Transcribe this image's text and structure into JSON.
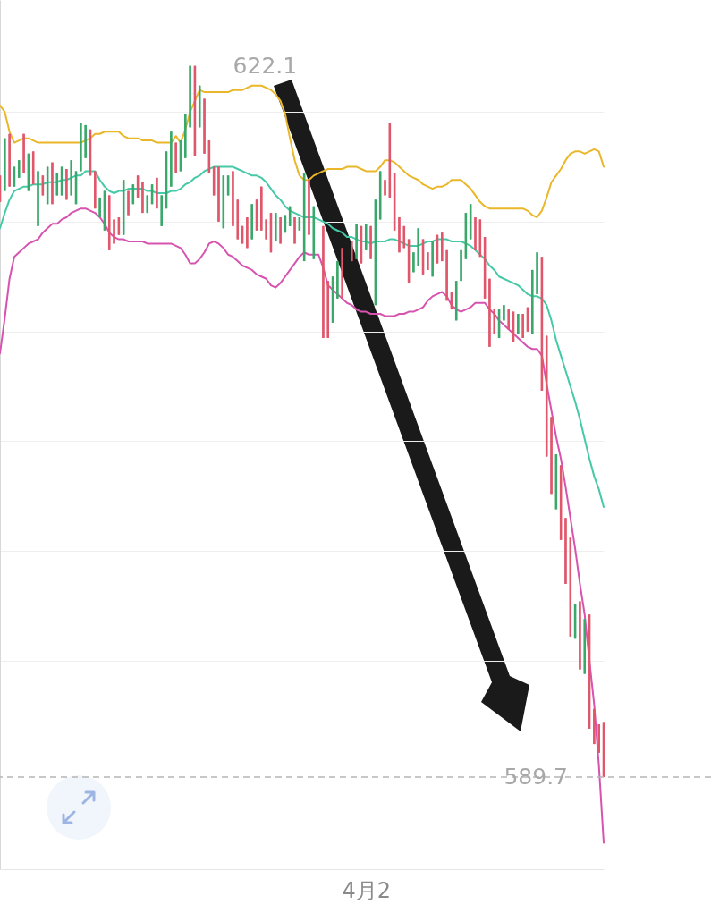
{
  "chart_data": {
    "type": "candlestick",
    "categories": [
      null,
      null,
      null,
      null,
      null,
      null,
      null,
      null,
      null,
      null,
      null,
      null,
      null,
      null,
      null,
      null,
      null,
      null,
      null,
      null,
      null,
      null,
      null,
      null,
      null,
      null,
      null,
      null,
      null,
      null,
      null,
      null,
      null,
      null,
      null,
      null,
      null,
      null,
      null,
      null,
      null,
      null,
      null,
      null,
      null,
      null,
      null,
      null,
      null,
      null,
      null,
      null,
      null,
      null,
      null,
      null,
      null,
      null,
      null,
      null,
      null,
      null,
      null,
      null,
      null,
      null,
      null,
      null,
      null,
      null,
      null,
      null,
      null,
      null,
      null,
      null,
      null,
      "4月2",
      null,
      null,
      null,
      null,
      null,
      null,
      null,
      null,
      null,
      null,
      null,
      null,
      null,
      null,
      null,
      null,
      null,
      null,
      null,
      null,
      null,
      null,
      null,
      null,
      null,
      null,
      null,
      null,
      null,
      null,
      null,
      null,
      null,
      null,
      null,
      null,
      null,
      null,
      null,
      null,
      null,
      null,
      null,
      null,
      null,
      null,
      null,
      null,
      null,
      null
    ],
    "ohlc": [
      [
        617.1,
        617.1,
        615.9,
        615.9
      ],
      [
        616.4,
        618.8,
        616.4,
        618.8
      ],
      [
        619.0,
        619.0,
        616.6,
        616.6
      ],
      [
        616.6,
        617.5,
        616.6,
        617.5
      ],
      [
        617.0,
        617.8,
        617.0,
        617.8
      ],
      [
        619.0,
        619.0,
        617.2,
        617.2
      ],
      [
        616.4,
        618.1,
        616.4,
        618.1
      ],
      [
        618.2,
        618.2,
        616.7,
        616.7
      ],
      [
        614.8,
        617.3,
        614.8,
        617.3
      ],
      [
        617.1,
        617.1,
        616.2,
        616.2
      ],
      [
        615.8,
        617.5,
        615.8,
        617.5
      ],
      [
        617.7,
        617.7,
        615.8,
        615.8
      ],
      [
        616.2,
        617.2,
        616.2,
        617.2
      ],
      [
        616.2,
        617.5,
        616.2,
        617.5
      ],
      [
        617.4,
        617.4,
        616.0,
        616.0
      ],
      [
        616.2,
        617.8,
        616.2,
        617.8
      ],
      [
        615.8,
        617.3,
        615.8,
        617.3
      ],
      [
        617.3,
        619.5,
        617.3,
        619.5
      ],
      [
        617.9,
        619.4,
        617.9,
        619.4
      ],
      [
        619.2,
        619.2,
        617.1,
        617.1
      ],
      [
        617.3,
        617.3,
        615.6,
        615.6
      ],
      [
        615.2,
        616.1,
        615.2,
        616.1
      ],
      [
        614.6,
        616.4,
        614.6,
        616.4
      ],
      [
        616.2,
        616.2,
        613.7,
        613.7
      ],
      [
        615.1,
        615.1,
        614.0,
        614.0
      ],
      [
        615.2,
        615.2,
        614.4,
        614.4
      ],
      [
        614.4,
        616.9,
        614.4,
        616.9
      ],
      [
        616.4,
        616.4,
        615.3,
        615.3
      ],
      [
        615.8,
        616.7,
        615.8,
        616.7
      ],
      [
        617.1,
        617.1,
        616.1,
        616.1
      ],
      [
        616.8,
        616.8,
        615.4,
        615.4
      ],
      [
        615.4,
        616.2,
        615.4,
        616.2
      ],
      [
        615.8,
        616.7,
        615.8,
        616.7
      ],
      [
        617.0,
        617.0,
        615.6,
        615.6
      ],
      [
        614.8,
        616.2,
        614.8,
        616.2
      ],
      [
        615.6,
        618.2,
        615.6,
        618.2
      ],
      [
        616.6,
        619.1,
        616.6,
        619.1
      ],
      [
        618.6,
        618.6,
        617.2,
        617.2
      ],
      [
        617.3,
        618.7,
        617.3,
        618.7
      ],
      [
        617.9,
        619.9,
        617.9,
        619.9
      ],
      [
        619.3,
        622.1,
        619.3,
        622.1
      ],
      [
        622.1,
        622.1,
        618.0,
        618.0
      ],
      [
        619.3,
        621.2,
        619.3,
        621.2
      ],
      [
        620.6,
        620.6,
        618.1,
        618.1
      ],
      [
        618.7,
        618.7,
        617.2,
        617.2
      ],
      [
        617.5,
        617.5,
        616.2,
        616.2
      ],
      [
        617.5,
        617.5,
        615.0,
        615.0
      ],
      [
        614.7,
        617.1,
        614.7,
        617.1
      ],
      [
        616.2,
        617.1,
        616.2,
        617.1
      ],
      [
        617.3,
        617.3,
        614.8,
        614.8
      ],
      [
        616.0,
        616.0,
        614.2,
        614.2
      ],
      [
        614.8,
        614.8,
        614.0,
        614.0
      ],
      [
        615.2,
        615.2,
        613.8,
        613.8
      ],
      [
        614.2,
        615.8,
        614.2,
        615.8
      ],
      [
        616.0,
        616.0,
        614.6,
        614.6
      ],
      [
        616.6,
        616.6,
        614.6,
        614.6
      ],
      [
        615.1,
        615.1,
        614.2,
        614.2
      ],
      [
        615.4,
        615.4,
        613.6,
        613.6
      ],
      [
        614.1,
        615.4,
        614.1,
        615.4
      ],
      [
        615.2,
        615.2,
        614.0,
        614.0
      ],
      [
        614.5,
        615.3,
        614.5,
        615.3
      ],
      [
        614.8,
        615.7,
        614.8,
        615.7
      ],
      [
        615.2,
        615.2,
        614.0,
        614.0
      ],
      [
        614.6,
        615.2,
        614.6,
        615.2
      ],
      [
        613.2,
        617.2,
        613.2,
        617.2
      ],
      [
        616.9,
        616.9,
        614.4,
        614.4
      ],
      [
        613.3,
        615.7,
        613.3,
        615.7
      ],
      null,
      [
        614.8,
        614.8,
        609.7,
        609.7
      ],
      [
        612.3,
        612.3,
        609.7,
        609.7
      ],
      [
        610.4,
        612.5,
        610.4,
        612.5
      ],
      [
        611.5,
        613.2,
        611.5,
        613.2
      ],
      [
        613.8,
        613.8,
        611.5,
        611.5
      ],
      null,
      [
        614.1,
        614.1,
        613.2,
        613.2
      ],
      [
        613.3,
        614.9,
        613.3,
        614.9
      ],
      [
        614.8,
        614.8,
        613.1,
        613.1
      ],
      [
        613.7,
        614.9,
        613.7,
        614.9
      ],
      [
        614.8,
        614.8,
        613.3,
        613.3
      ],
      [
        611.2,
        616.0,
        611.2,
        616.0
      ],
      [
        615.1,
        617.3,
        615.1,
        617.3
      ],
      [
        616.9,
        616.9,
        616.2,
        616.2
      ],
      [
        619.5,
        619.5,
        616.1,
        616.1
      ],
      [
        617.2,
        617.2,
        614.6,
        614.6
      ],
      [
        615.2,
        615.2,
        613.6,
        613.6
      ],
      [
        614.8,
        614.8,
        613.8,
        613.8
      ],
      [
        614.2,
        614.2,
        612.2,
        612.2
      ],
      [
        612.7,
        613.6,
        612.7,
        613.6
      ],
      [
        613.0,
        614.7,
        613.0,
        614.7
      ],
      [
        614.2,
        614.2,
        612.6,
        612.6
      ],
      [
        613.6,
        613.6,
        612.8,
        612.8
      ],
      [
        612.5,
        614.1,
        612.5,
        614.1
      ],
      [
        614.4,
        614.4,
        613.1,
        613.1
      ],
      [
        614.5,
        614.5,
        613.2,
        613.2
      ],
      [
        613.7,
        613.7,
        611.4,
        611.4
      ],
      [
        611.8,
        611.8,
        611.0,
        611.0
      ],
      [
        610.5,
        612.3,
        610.5,
        612.3
      ],
      [
        612.3,
        613.7,
        612.3,
        613.7
      ],
      [
        613.3,
        615.4,
        613.3,
        615.4
      ],
      [
        614.2,
        615.8,
        614.2,
        615.8
      ],
      [
        615.2,
        615.2,
        613.7,
        613.7
      ],
      [
        615.1,
        615.1,
        613.4,
        613.4
      ],
      [
        614.3,
        614.3,
        611.5,
        611.5
      ],
      [
        612.4,
        612.4,
        609.3,
        609.3
      ],
      [
        611.0,
        611.0,
        609.9,
        609.9
      ],
      [
        609.7,
        611.0,
        609.7,
        611.0
      ],
      [
        610.5,
        611.2,
        610.5,
        611.2
      ],
      [
        611.0,
        611.0,
        610.1,
        610.1
      ],
      [
        610.9,
        610.9,
        609.5,
        609.5
      ],
      [
        609.9,
        610.8,
        609.9,
        610.8
      ],
      [
        610.8,
        610.8,
        609.7,
        609.7
      ],
      [
        611.1,
        611.1,
        610.0,
        610.0
      ],
      [
        609.9,
        612.8,
        609.9,
        612.8
      ],
      [
        611.7,
        613.6,
        611.7,
        613.6
      ],
      [
        613.4,
        613.4,
        607.3,
        607.3
      ],
      [
        609.8,
        609.8,
        604.3,
        604.3
      ],
      [
        606.1,
        606.1,
        602.6,
        602.6
      ],
      [
        601.9,
        604.4,
        601.9,
        604.4
      ],
      [
        603.9,
        603.9,
        600.5,
        600.5
      ],
      [
        601.5,
        601.5,
        598.5,
        598.5
      ],
      [
        600.6,
        600.6,
        596.1,
        596.1
      ],
      [
        596.0,
        597.6,
        596.0,
        597.6
      ],
      [
        597.7,
        597.7,
        594.6,
        594.6
      ],
      [
        594.4,
        596.9,
        594.4,
        596.9
      ],
      [
        597.1,
        597.1,
        591.9,
        591.9
      ],
      [
        592.8,
        592.8,
        591.2,
        591.2
      ],
      [
        592.1,
        592.1,
        590.8,
        590.8
      ],
      [
        592.2,
        592.2,
        589.7,
        589.7
      ]
    ],
    "colors": [
      "#e0566b",
      "#3aa86a",
      "#e0566b",
      "#3aa86a",
      "#3aa86a",
      "#e0566b",
      "#3aa86a",
      "#e0566b",
      "#3aa86a",
      "#e0566b",
      "#3aa86a",
      "#e0566b",
      "#3aa86a",
      "#3aa86a",
      "#e0566b",
      "#3aa86a",
      "#3aa86a",
      "#3aa86a",
      "#3aa86a",
      "#e0566b",
      "#e0566b",
      "#3aa86a",
      "#3aa86a",
      "#e0566b",
      "#e0566b",
      "#e0566b",
      "#3aa86a",
      "#e0566b",
      "#3aa86a",
      "#e0566b",
      "#e0566b",
      "#3aa86a",
      "#3aa86a",
      "#e0566b",
      "#3aa86a",
      "#3aa86a",
      "#3aa86a",
      "#e0566b",
      "#3aa86a",
      "#3aa86a",
      "#3aa86a",
      "#e0566b",
      "#3aa86a",
      "#e0566b",
      "#e0566b",
      "#e0566b",
      "#e0566b",
      "#3aa86a",
      "#3aa86a",
      "#e0566b",
      "#e0566b",
      "#e0566b",
      "#e0566b",
      "#3aa86a",
      "#e0566b",
      "#e0566b",
      "#e0566b",
      "#e0566b",
      "#3aa86a",
      "#e0566b",
      "#3aa86a",
      "#3aa86a",
      "#e0566b",
      "#3aa86a",
      "#3aa86a",
      "#e0566b",
      "#3aa86a",
      null,
      "#e0566b",
      "#e0566b",
      "#3aa86a",
      "#3aa86a",
      "#e0566b",
      null,
      "#e0566b",
      "#3aa86a",
      "#e0566b",
      "#3aa86a",
      "#e0566b",
      "#3aa86a",
      "#3aa86a",
      "#e0566b",
      "#e0566b",
      "#e0566b",
      "#e0566b",
      "#e0566b",
      "#e0566b",
      "#3aa86a",
      "#3aa86a",
      "#e0566b",
      "#e0566b",
      "#3aa86a",
      "#e0566b",
      "#e0566b",
      "#e0566b",
      "#e0566b",
      "#3aa86a",
      "#3aa86a",
      "#3aa86a",
      "#3aa86a",
      "#e0566b",
      "#e0566b",
      "#e0566b",
      "#e0566b",
      "#e0566b",
      "#3aa86a",
      "#3aa86a",
      "#e0566b",
      "#e0566b",
      "#3aa86a",
      "#e0566b",
      "#e0566b",
      "#3aa86a",
      "#3aa86a",
      "#e0566b",
      "#e0566b",
      "#e0566b",
      "#3aa86a",
      "#e0566b",
      "#e0566b",
      "#e0566b",
      "#3aa86a",
      "#e0566b",
      "#3aa86a",
      "#e0566b",
      "#e0566b",
      "#e0566b",
      "#e0566b"
    ],
    "series": [
      {
        "type": "line",
        "color": "#eab72a",
        "values": [
          620.3,
          620.0,
          619.1,
          618.6,
          618.7,
          618.8,
          618.8,
          618.7,
          618.6,
          618.6,
          618.6,
          618.6,
          618.6,
          618.6,
          618.6,
          618.6,
          618.6,
          618.6,
          618.7,
          618.8,
          619.0,
          619.0,
          619.1,
          619.1,
          619.1,
          619.1,
          618.9,
          618.8,
          618.8,
          618.8,
          618.7,
          618.7,
          618.7,
          618.6,
          618.6,
          618.6,
          618.6,
          618.9,
          618.6,
          619.2,
          620.0,
          620.5,
          621.0,
          620.9,
          620.9,
          620.9,
          620.9,
          620.9,
          620.9,
          621.0,
          621.0,
          621.0,
          621.1,
          621.2,
          621.2,
          621.2,
          621.1,
          621.0,
          620.8,
          620.5,
          619.9,
          618.8,
          617.8,
          617.1,
          616.9,
          616.9,
          617.1,
          617.2,
          617.3,
          617.4,
          617.4,
          617.4,
          617.4,
          617.5,
          617.5,
          617.5,
          617.4,
          617.3,
          617.3,
          617.3,
          617.5,
          617.8,
          617.8,
          617.7,
          617.5,
          617.3,
          617.1,
          617.0,
          616.9,
          616.7,
          616.6,
          616.5,
          616.6,
          616.6,
          616.7,
          616.9,
          616.9,
          616.9,
          616.7,
          616.5,
          616.2,
          615.9,
          615.7,
          615.6,
          615.6,
          615.6,
          615.6,
          615.6,
          615.6,
          615.6,
          615.6,
          615.5,
          615.3,
          615.2,
          615.5,
          616.1,
          616.8,
          617.1,
          617.4,
          617.8,
          618.1,
          618.2,
          618.2,
          618.1,
          618.2,
          618.3,
          618.2,
          617.5
        ]
      },
      {
        "type": "line",
        "color": "#45c9a6",
        "values": [
          614.7,
          615.4,
          616.0,
          616.4,
          616.5,
          616.6,
          616.6,
          616.7,
          616.7,
          616.7,
          616.8,
          616.8,
          616.8,
          616.9,
          616.9,
          617.0,
          617.1,
          617.1,
          617.3,
          617.3,
          617.3,
          616.9,
          616.6,
          616.4,
          616.3,
          616.4,
          616.4,
          616.5,
          616.5,
          616.5,
          616.5,
          616.4,
          616.4,
          616.3,
          616.3,
          616.3,
          616.4,
          616.4,
          616.5,
          616.7,
          616.8,
          617.0,
          617.1,
          617.3,
          617.4,
          617.5,
          617.5,
          617.5,
          617.5,
          617.5,
          617.4,
          617.3,
          617.2,
          617.1,
          617.1,
          617.0,
          616.8,
          616.5,
          616.2,
          616.0,
          615.7,
          615.5,
          615.4,
          615.3,
          615.2,
          615.2,
          615.2,
          615.1,
          615.0,
          614.9,
          614.7,
          614.6,
          614.5,
          614.3,
          614.3,
          614.2,
          614.1,
          614.1,
          614.0,
          614.1,
          614.1,
          614.1,
          614.2,
          614.2,
          614.1,
          614.0,
          613.9,
          613.9,
          613.9,
          614.0,
          614.1,
          614.1,
          614.2,
          614.2,
          614.2,
          614.1,
          614.1,
          614.1,
          614.0,
          613.9,
          613.7,
          613.5,
          613.3,
          613.0,
          612.8,
          612.5,
          612.4,
          612.3,
          612.2,
          612.1,
          611.9,
          611.7,
          611.6,
          611.6,
          611.5,
          611.2,
          610.5,
          609.6,
          608.9,
          608.2,
          607.5,
          606.8,
          606.0,
          605.1,
          604.2,
          603.4,
          602.8,
          602.0
        ]
      },
      {
        "type": "line",
        "color": "#d654b0",
        "values": [
          609.0,
          610.6,
          612.4,
          613.4,
          613.6,
          613.8,
          614.0,
          614.1,
          614.2,
          614.5,
          614.7,
          614.9,
          614.9,
          615.1,
          615.2,
          615.4,
          615.5,
          615.6,
          615.6,
          615.5,
          615.4,
          615.2,
          614.9,
          614.5,
          614.3,
          614.2,
          614.2,
          614.1,
          614.1,
          614.1,
          614.1,
          614.0,
          614.0,
          614.0,
          614.0,
          614.0,
          614.0,
          613.9,
          613.8,
          613.5,
          613.1,
          613.1,
          613.3,
          613.6,
          614.0,
          614.1,
          614.0,
          613.8,
          613.5,
          613.4,
          613.2,
          613.0,
          612.9,
          612.8,
          612.6,
          612.5,
          612.4,
          612.1,
          612.0,
          612.2,
          612.5,
          612.8,
          613.1,
          613.4,
          613.6,
          613.5,
          613.5,
          613.5,
          612.9,
          612.1,
          611.9,
          611.7,
          611.5,
          611.3,
          611.2,
          611.0,
          610.9,
          610.9,
          610.8,
          610.8,
          610.8,
          610.7,
          610.7,
          610.7,
          610.8,
          610.8,
          610.9,
          610.9,
          611.0,
          611.1,
          611.4,
          611.6,
          611.7,
          611.8,
          611.6,
          611.2,
          611.0,
          610.9,
          611.0,
          611.1,
          611.3,
          611.3,
          611.3,
          611.0,
          610.8,
          610.5,
          610.3,
          610.1,
          609.9,
          609.7,
          609.5,
          609.3,
          609.2,
          609.2,
          608.9,
          607.6,
          606.4,
          605.2,
          604.2,
          602.9,
          601.5,
          600.1,
          598.5,
          597.1,
          595.0,
          593.0,
          590.2,
          586.7
        ]
      }
    ],
    "ylim": [
      585.5,
      625.1
    ],
    "yticks": [
      {
        "value": 595,
        "label": null
      },
      {
        "value": 600,
        "label": null
      },
      {
        "value": 605,
        "label": null
      },
      {
        "value": 610,
        "label": null
      },
      {
        "value": 615,
        "label": null
      },
      {
        "value": 620,
        "label": null
      }
    ],
    "grid": "y",
    "tick_labels": "x",
    "ref_lines": [
      {
        "axis": "y",
        "value": 589.7,
        "color": "#b5b5b5",
        "line_style": "dashed"
      }
    ],
    "annotations": [
      "622.1",
      "589.7"
    ]
  }
}
